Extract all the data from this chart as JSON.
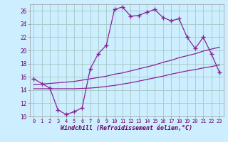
{
  "xlabel": "Windchill (Refroidissement éolien,°C)",
  "bg_color": "#cceeff",
  "grid_color": "#aacccc",
  "line_color": "#882299",
  "xlim": [
    -0.5,
    23.5
  ],
  "ylim": [
    10,
    27
  ],
  "yticks": [
    10,
    12,
    14,
    16,
    18,
    20,
    22,
    24,
    26
  ],
  "xticks": [
    0,
    1,
    2,
    3,
    4,
    5,
    6,
    7,
    8,
    9,
    10,
    11,
    12,
    13,
    14,
    15,
    16,
    17,
    18,
    19,
    20,
    21,
    22,
    23
  ],
  "curve_x": [
    0,
    1,
    2,
    3,
    4,
    5,
    6,
    7,
    8,
    9,
    10,
    11,
    12,
    13,
    14,
    15,
    16,
    17,
    18,
    19,
    20,
    21,
    22,
    23
  ],
  "curve_y": [
    15.7,
    15.0,
    14.3,
    11.0,
    10.3,
    10.7,
    11.3,
    17.2,
    19.5,
    20.8,
    26.2,
    26.6,
    25.2,
    25.3,
    25.8,
    26.2,
    25.0,
    24.5,
    24.8,
    22.0,
    20.3,
    22.0,
    19.5,
    16.7
  ],
  "line1_x": [
    0,
    1,
    2,
    3,
    4,
    5,
    6,
    7,
    8,
    9,
    10,
    11,
    12,
    13,
    14,
    15,
    16,
    17,
    18,
    19,
    20,
    21,
    22,
    23
  ],
  "line1_y": [
    14.8,
    14.9,
    15.0,
    15.1,
    15.2,
    15.3,
    15.5,
    15.7,
    15.9,
    16.1,
    16.4,
    16.6,
    16.9,
    17.2,
    17.5,
    17.8,
    18.2,
    18.5,
    18.9,
    19.2,
    19.5,
    19.9,
    20.2,
    20.5
  ],
  "line2_x": [
    0,
    1,
    2,
    3,
    4,
    5,
    6,
    7,
    8,
    9,
    10,
    11,
    12,
    13,
    14,
    15,
    16,
    17,
    18,
    19,
    20,
    21,
    22,
    23
  ],
  "line2_y": [
    14.2,
    14.2,
    14.2,
    14.2,
    14.2,
    14.2,
    14.25,
    14.3,
    14.4,
    14.55,
    14.7,
    14.9,
    15.1,
    15.35,
    15.6,
    15.85,
    16.1,
    16.4,
    16.65,
    16.9,
    17.1,
    17.35,
    17.55,
    17.8
  ]
}
